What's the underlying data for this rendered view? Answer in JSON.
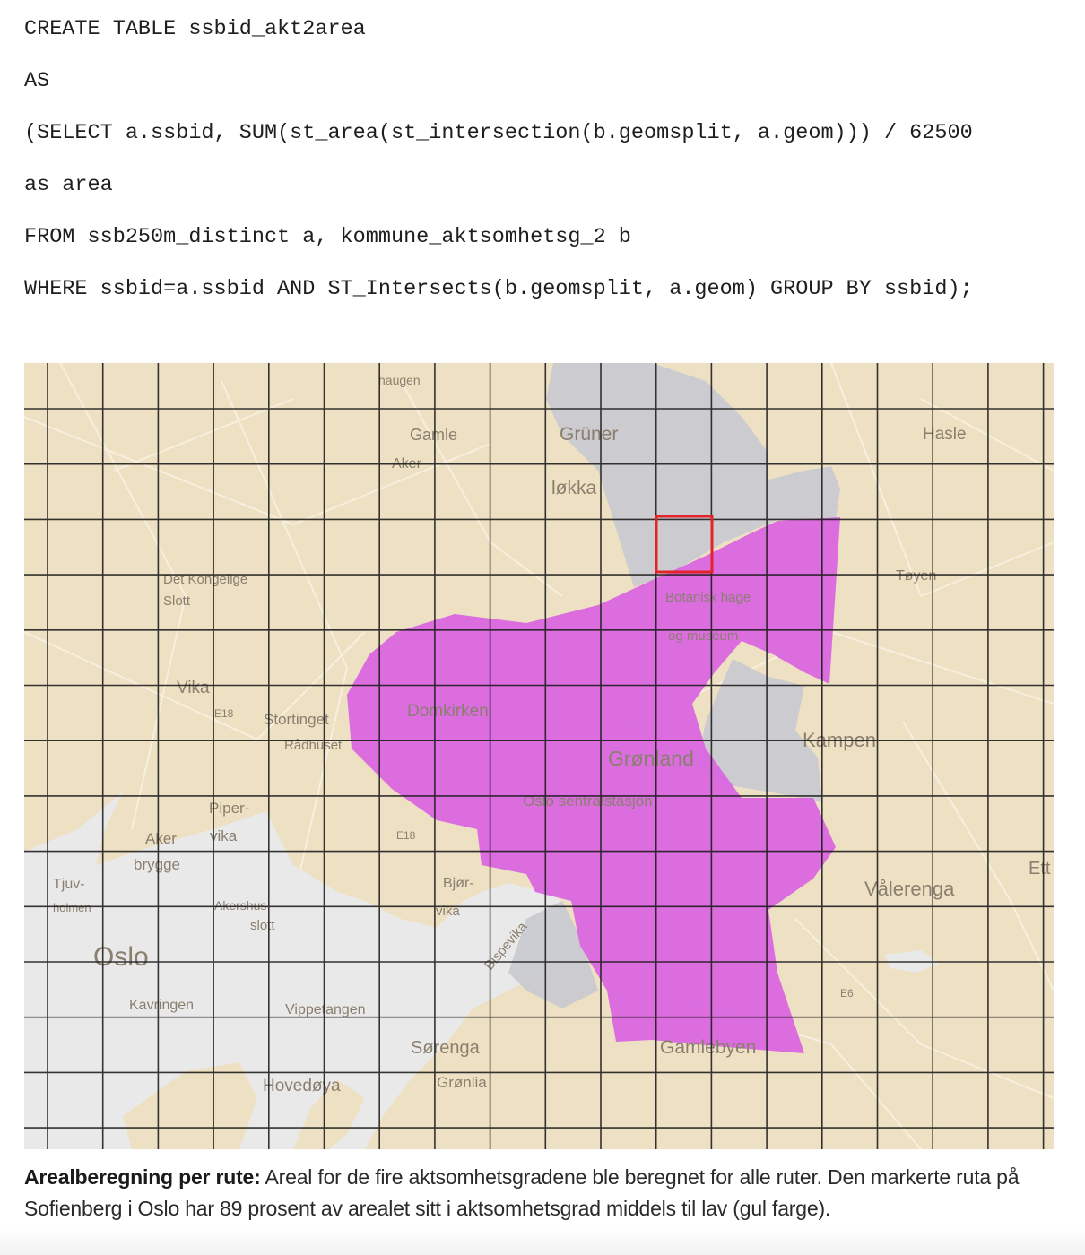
{
  "code": {
    "lines": [
      "CREATE TABLE ssbid_akt2area",
      "AS",
      "(SELECT a.ssbid, SUM(st_area(st_intersection(b.geomsplit, a.geom))) / 62500",
      "as area",
      "FROM ssb250m_distinct a, kommune_aktsomhetsg_2 b",
      "WHERE ssbid=a.ssbid AND ST_Intersects(b.geomsplit, a.geom) GROUP BY ssbid);"
    ]
  },
  "map": {
    "colors": {
      "land": "#eee0c3",
      "water": "#e9e9e9",
      "grey_zone": "#c9c9d0",
      "purple_zone": "#d966e0",
      "grid": "#1a1a1a",
      "highlight": "#e3232a"
    },
    "labels": {
      "haugen": "haugen",
      "gamle": "Gamle",
      "aker": "Aker",
      "gruner": "Grüner",
      "lokka": "løkka",
      "hasle": "Hasle",
      "det_kongelige": "Det Kongelige",
      "slott": "Slott",
      "toyen": "Tøyen",
      "botanisk": "Botanisk hage",
      "museum": "og museum",
      "vika_top": "Vika",
      "e18_a": "E18",
      "stortinget": "Stortinget",
      "radhuset": "Rådhuset",
      "domkirken": "Domkirken",
      "kampen": "Kampen",
      "gronland": "Grønland",
      "oslo_s": "Oslo sentralstasjon",
      "piper": "Piper-",
      "vika": "vika",
      "aker2": "Aker",
      "brygge": "brygge",
      "e18_b": "E18",
      "tjuv": "Tjuv-",
      "holmen": "holmen",
      "bjor": "Bjør-",
      "vika2": "vika",
      "akershus": "Akershus",
      "slott2": "slott",
      "valerenga": "Vålerenga",
      "ett": "Ett",
      "oslo": "Oslo",
      "bispevika": "Bispevika",
      "kavringen": "Kavringen",
      "vippetangen": "Vippetangen",
      "e6": "E6",
      "gamlebyen": "Gamlebyen",
      "sorenga": "Sørenga",
      "hovedoya": "Hovedøya",
      "gronlia": "Grønlia"
    }
  },
  "caption": {
    "lead": "Arealberegning per rute:",
    "text": " Areal for de fire aktsomhetsgradene ble beregnet for alle ruter. Den markerte ruta på Sofienberg i Oslo har 89 prosent av arealet sitt i aktsomhetsgrad middels til lav (gul farge)."
  }
}
